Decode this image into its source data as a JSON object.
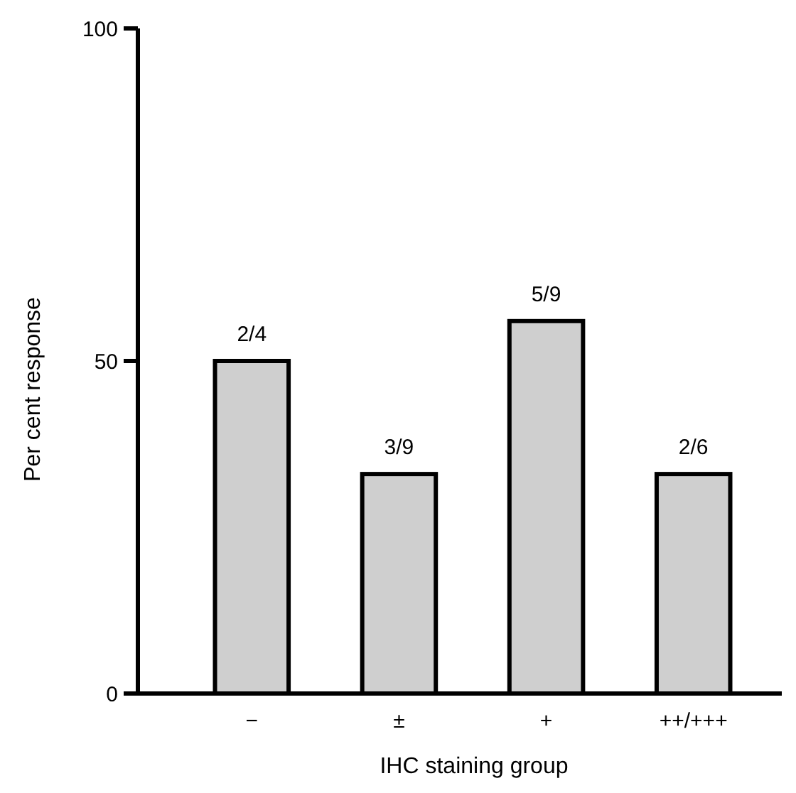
{
  "chart_data": {
    "type": "bar",
    "xlabel": "IHC staining group",
    "ylabel": "Per cent response",
    "categories": [
      "−",
      "±",
      "+",
      "++/+++"
    ],
    "values": [
      50,
      33,
      56,
      33
    ],
    "annotations": [
      {
        "text": "2/4",
        "x": "−",
        "y": 50
      },
      {
        "text": "3/9",
        "x": "±",
        "y": 33
      },
      {
        "text": "5/9",
        "x": "+",
        "y": 56
      },
      {
        "text": "2/6",
        "x": "++/+++",
        "y": 33
      }
    ],
    "color": "#cfcfcf",
    "ylim": [
      0,
      100
    ],
    "yticks": [
      0,
      50,
      100
    ],
    "grid": false
  }
}
